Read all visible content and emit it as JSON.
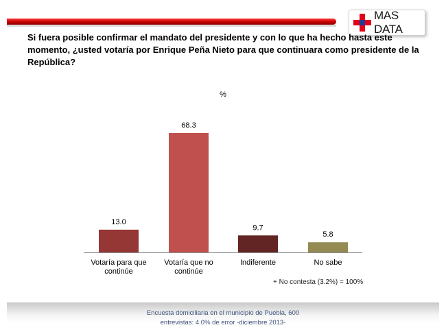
{
  "brand": {
    "name": "MAS DATA",
    "cross_color": "#e3001b",
    "center_color": "#1f3d99"
  },
  "question": "Si fuera posible confirmar el mandato del presidente y con lo que ha hecho hasta este momento, ¿usted votaría por Enrique Peña Nieto para que continuara como presidente de la República?",
  "chart_data": {
    "type": "bar",
    "unit_label": "%",
    "categories": [
      [
        "Votaría para que",
        "continúe"
      ],
      [
        "Votaría que no",
        "continúe"
      ],
      [
        "Indiferente"
      ],
      [
        "No sabe"
      ]
    ],
    "values": [
      13.0,
      68.3,
      9.7,
      5.8
    ],
    "value_labels": [
      "13.0",
      "68.3",
      "9.7",
      "5.8"
    ],
    "colors": [
      "#953735",
      "#c0504d",
      "#632523",
      "#948a54"
    ],
    "ylim": [
      0,
      68.3
    ],
    "grid": false,
    "legend": "none",
    "title": "",
    "xlabel": "",
    "ylabel": ""
  },
  "footnote": "+ No contesta (3.2%) = 100%",
  "footer": {
    "line1": "Encuesta domiciliaria en el municipio de Puebla, 600",
    "line2": "entrevistas: 4.0% de error -diciembre 2013-"
  }
}
